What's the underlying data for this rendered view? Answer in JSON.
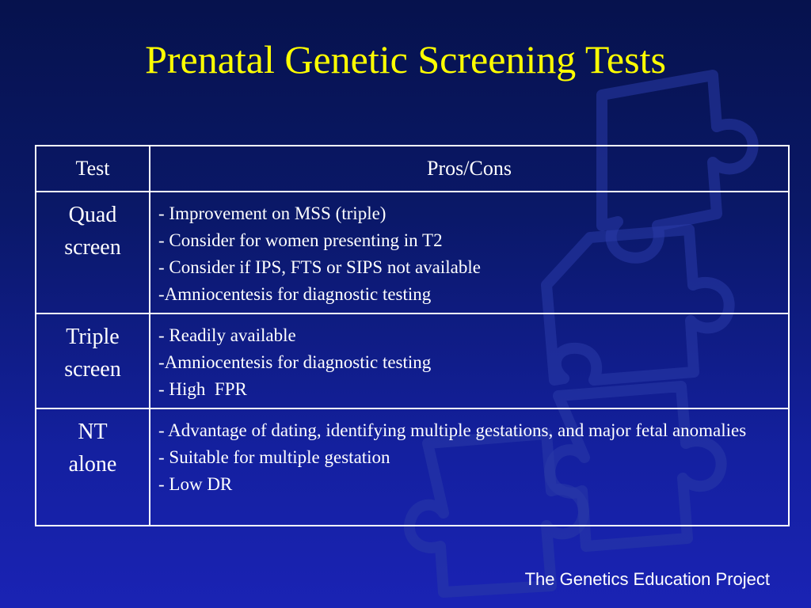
{
  "slide": {
    "title": "Prenatal Genetic Screening Tests",
    "footer": "The Genetics Education Project"
  },
  "table": {
    "headers": [
      "Test",
      "Pros/Cons"
    ],
    "rows": [
      {
        "test": [
          "Quad",
          "screen"
        ],
        "pros_cons": [
          "- Improvement on MSS (triple)",
          "- Consider for women presenting in T2",
          "- Consider if IPS, FTS or SIPS not available",
          "-Amniocentesis for diagnostic testing"
        ]
      },
      {
        "test": [
          "Triple",
          "screen"
        ],
        "pros_cons": [
          "- Readily available",
          "-Amniocentesis for diagnostic testing",
          "- High  FPR"
        ]
      },
      {
        "test": [
          "NT",
          "alone"
        ],
        "pros_cons": [
          "- Advantage of dating, identifying multiple gestations, and major fetal anomalies",
          "- Suitable for multiple gestation",
          "- Low DR"
        ]
      }
    ]
  },
  "colors": {
    "title": "#ffff00",
    "text": "#ffffff",
    "background": "#0a1868"
  },
  "watermark_icon": "puzzle-piece-icon"
}
